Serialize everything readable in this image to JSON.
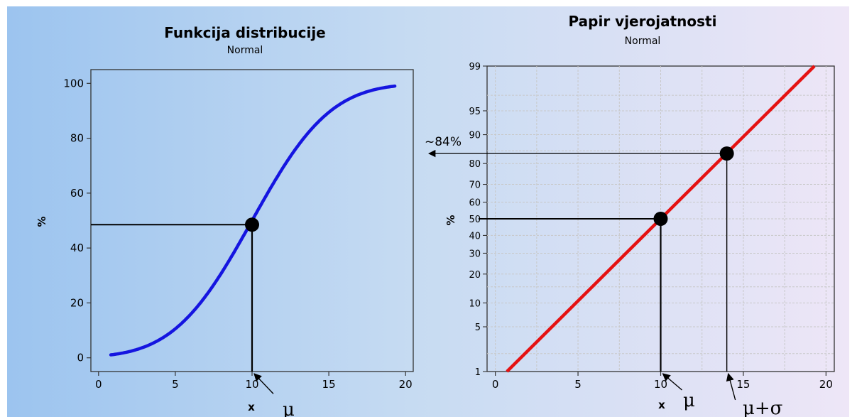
{
  "colors": {
    "bg_left": "#9cc4ef",
    "bg_right": "#ece4f6",
    "cdf_curve": "#1515e0",
    "prob_line": "#e51212",
    "grid": "#c8c8c8"
  },
  "chart_data": [
    {
      "type": "line",
      "title": "Funkcija distribucije",
      "subtitle": "Normal",
      "xlabel": "x",
      "ylabel": "%",
      "xlim": [
        -0.5,
        20.5
      ],
      "ylim": [
        -5,
        105
      ],
      "xticks": [
        "0",
        "5",
        "10",
        "15",
        "20"
      ],
      "yticks": [
        "0",
        "20",
        "40",
        "60",
        "80",
        "100"
      ],
      "grid": false,
      "distribution": {
        "mean": 10,
        "sd": 4
      },
      "series": [
        {
          "x": [
            0.8,
            2,
            3,
            4,
            5,
            6,
            7,
            8,
            9,
            10,
            11,
            12,
            13,
            14,
            15,
            16,
            17,
            18,
            19.3
          ],
          "y": [
            1.1,
            2.3,
            3.7,
            6.7,
            10.6,
            15.9,
            22.7,
            30.9,
            40.1,
            50,
            59.9,
            69.1,
            77.3,
            84.1,
            89.4,
            93.3,
            96.3,
            97.7,
            98.9
          ]
        }
      ],
      "marker": {
        "x": 10,
        "y": 48.5
      },
      "annotations": [
        "μ"
      ]
    },
    {
      "type": "line",
      "title": "Papir vjerojatnosti",
      "subtitle": "Normal",
      "xlabel": "x",
      "ylabel": "%",
      "scale_y": "normal-probability",
      "xlim": [
        -0.5,
        20.5
      ],
      "ylim": [
        1,
        99
      ],
      "xticks": [
        "0",
        "5",
        "10",
        "15",
        "20"
      ],
      "yticks": [
        "1",
        "5",
        "10",
        "20",
        "30",
        "40",
        "50",
        "60",
        "70",
        "80",
        "90",
        "95",
        "99"
      ],
      "grid": true,
      "series": [
        {
          "x": [
            0.7,
            19.3
          ],
          "y": [
            1,
            99
          ]
        }
      ],
      "markers": [
        {
          "x": 10,
          "y": 50
        },
        {
          "x": 14,
          "y": 84
        }
      ],
      "annotations": [
        "~84%",
        "μ",
        "μ+σ"
      ]
    }
  ]
}
